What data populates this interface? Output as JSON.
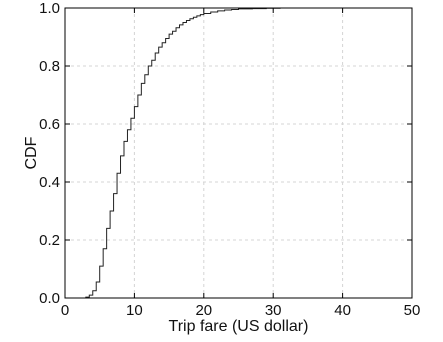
{
  "chart_data": {
    "type": "line",
    "step": true,
    "xlabel": "Trip fare (US dollar)",
    "ylabel": "CDF",
    "xlim": [
      0,
      50
    ],
    "ylim": [
      0,
      1
    ],
    "grid": true,
    "x_ticks": [
      0,
      10,
      20,
      30,
      40,
      50
    ],
    "x_tick_labels": [
      "0",
      "10",
      "20",
      "30",
      "40",
      "50"
    ],
    "y_ticks": [
      0,
      0.2,
      0.4,
      0.6,
      0.8,
      1.0
    ],
    "y_tick_labels": [
      "0.0",
      "0.2",
      "0.4",
      "0.6",
      "0.8",
      "1.0"
    ],
    "series": [
      {
        "color": "#222222",
        "points": [
          [
            2.5,
            0.0
          ],
          [
            3.0,
            0.003
          ],
          [
            3.5,
            0.01
          ],
          [
            4.0,
            0.025
          ],
          [
            4.5,
            0.055
          ],
          [
            5.0,
            0.11
          ],
          [
            5.5,
            0.17
          ],
          [
            6.0,
            0.24
          ],
          [
            6.5,
            0.3
          ],
          [
            7.0,
            0.36
          ],
          [
            7.5,
            0.43
          ],
          [
            8.0,
            0.49
          ],
          [
            8.5,
            0.54
          ],
          [
            9.0,
            0.58
          ],
          [
            9.5,
            0.62
          ],
          [
            10.0,
            0.66
          ],
          [
            10.5,
            0.7
          ],
          [
            11.0,
            0.74
          ],
          [
            11.5,
            0.77
          ],
          [
            12.0,
            0.8
          ],
          [
            12.5,
            0.82
          ],
          [
            13.0,
            0.845
          ],
          [
            13.5,
            0.865
          ],
          [
            14.0,
            0.88
          ],
          [
            14.5,
            0.895
          ],
          [
            15.0,
            0.91
          ],
          [
            15.5,
            0.92
          ],
          [
            16.0,
            0.932
          ],
          [
            16.5,
            0.942
          ],
          [
            17.0,
            0.95
          ],
          [
            17.5,
            0.957
          ],
          [
            18.0,
            0.963
          ],
          [
            18.5,
            0.968
          ],
          [
            19.0,
            0.973
          ],
          [
            19.5,
            0.977
          ],
          [
            20.0,
            0.981
          ],
          [
            21.0,
            0.986
          ],
          [
            22.0,
            0.99
          ],
          [
            23.0,
            0.993
          ],
          [
            24.0,
            0.995
          ],
          [
            25.0,
            0.997
          ],
          [
            27.0,
            0.998
          ],
          [
            29.0,
            0.999
          ],
          [
            31.0,
            1.0
          ],
          [
            50.0,
            1.0
          ]
        ]
      }
    ]
  }
}
